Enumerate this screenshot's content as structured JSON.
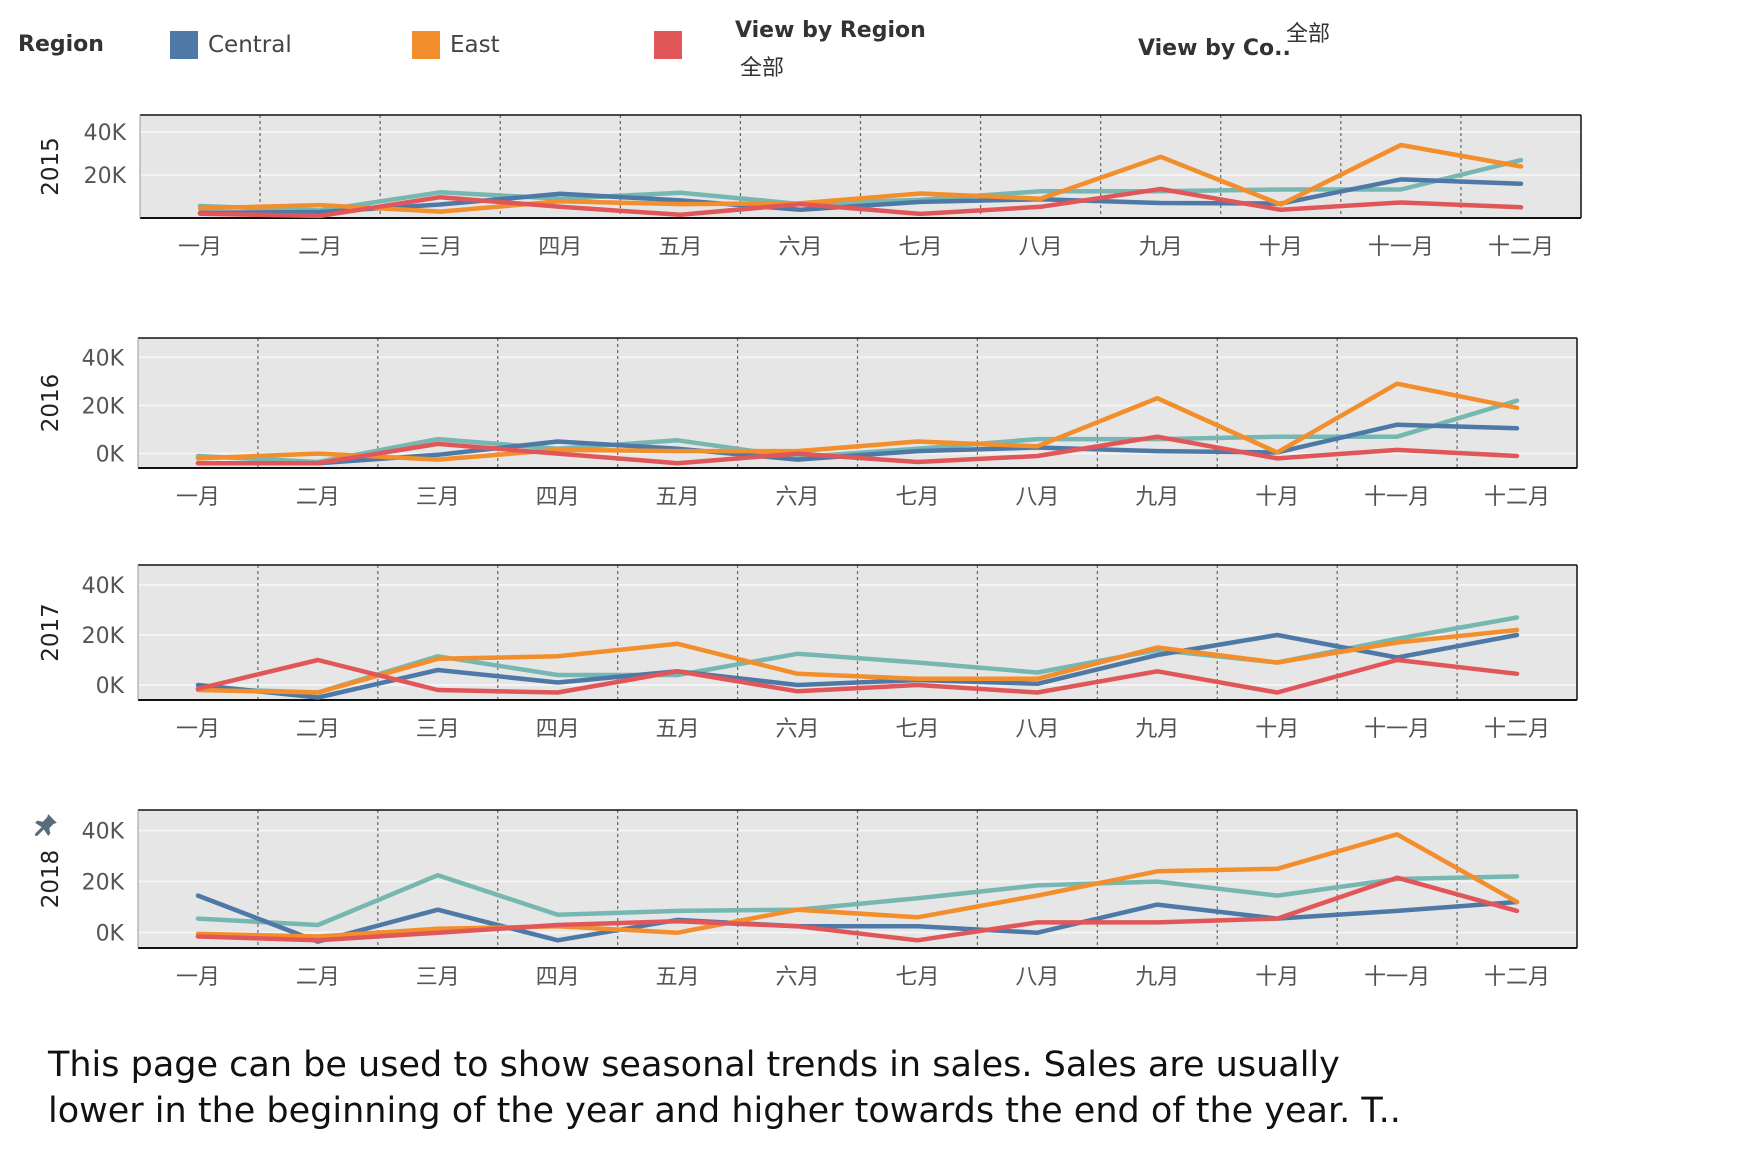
{
  "legend": {
    "title": "Region",
    "items": [
      {
        "label": "Central",
        "color": "#4e79a7"
      },
      {
        "label": "East",
        "color": "#f28e2b"
      },
      {
        "label": "",
        "color": "#e15759"
      }
    ]
  },
  "filters": [
    {
      "label": "View by Region",
      "value": "全部"
    },
    {
      "label": "View by Co..",
      "value": "全部"
    }
  ],
  "chart_data": {
    "type": "line",
    "categories": [
      "一月",
      "二月",
      "三月",
      "四月",
      "五月",
      "六月",
      "七月",
      "八月",
      "九月",
      "十月",
      "十一月",
      "十二月"
    ],
    "colors": {
      "Central": "#4e79a7",
      "East": "#f28e2b",
      "Red": "#e15759",
      "Teal": "#76b7b2"
    },
    "panels": [
      {
        "year": "2015",
        "ylim": [
          0,
          48000
        ],
        "yticks": [
          {
            "value": 20000,
            "label": "20K"
          },
          {
            "value": 40000,
            "label": "40K"
          }
        ],
        "series": [
          {
            "color": "#76b7b2",
            "values": [
              5600,
              3500,
              12000,
              9000,
              11800,
              6500,
              8500,
              12500,
              12500,
              13300,
              13300,
              27000
            ]
          },
          {
            "color": "#4e79a7",
            "values": [
              2400,
              2800,
              6300,
              11300,
              8200,
              3800,
              7500,
              8700,
              7000,
              6700,
              18000,
              16000
            ]
          },
          {
            "color": "#f28e2b",
            "values": [
              4500,
              6000,
              3000,
              7800,
              6500,
              6900,
              11400,
              9000,
              28500,
              6300,
              34000,
              24000
            ]
          },
          {
            "color": "#e15759",
            "values": [
              2000,
              1000,
              9700,
              5200,
              1500,
              6500,
              1900,
              5200,
              13500,
              3800,
              7200,
              5000
            ]
          }
        ]
      },
      {
        "year": "2016",
        "ylim": [
          -6000,
          48000
        ],
        "yticks": [
          {
            "value": 0,
            "label": "0K"
          },
          {
            "value": 20000,
            "label": "20K"
          },
          {
            "value": 40000,
            "label": "40K"
          }
        ],
        "series": [
          {
            "color": "#76b7b2",
            "values": [
              -1000,
              -3500,
              6000,
              2000,
              5500,
              -1500,
              2000,
              6000,
              6000,
              7000,
              7000,
              22000
            ]
          },
          {
            "color": "#4e79a7",
            "values": [
              -4000,
              -4000,
              -500,
              5000,
              2000,
              -2500,
              1000,
              2500,
              1000,
              500,
              12000,
              10500
            ]
          },
          {
            "color": "#f28e2b",
            "values": [
              -2000,
              0,
              -2500,
              1500,
              1000,
              1000,
              5000,
              3000,
              23000,
              500,
              29000,
              19000
            ]
          },
          {
            "color": "#e15759",
            "values": [
              -4000,
              -4000,
              4000,
              0,
              -4000,
              0,
              -3500,
              -1000,
              7000,
              -2000,
              1500,
              -1000
            ]
          }
        ]
      },
      {
        "year": "2017",
        "ylim": [
          -6000,
          48000
        ],
        "yticks": [
          {
            "value": 0,
            "label": "0K"
          },
          {
            "value": 20000,
            "label": "20K"
          },
          {
            "value": 40000,
            "label": "40K"
          }
        ],
        "series": [
          {
            "color": "#76b7b2",
            "values": [
              -1500,
              -3000,
              11500,
              4000,
              4000,
              12500,
              9000,
              5000,
              14000,
              9000,
              18500,
              27000
            ]
          },
          {
            "color": "#4e79a7",
            "values": [
              0,
              -5000,
              6000,
              1000,
              5500,
              0,
              2000,
              500,
              12000,
              20000,
              11000,
              20000
            ]
          },
          {
            "color": "#f28e2b",
            "values": [
              -2000,
              -3000,
              10500,
              11500,
              16500,
              4500,
              2500,
              2500,
              15000,
              9000,
              17000,
              22000
            ]
          },
          {
            "color": "#e15759",
            "values": [
              -1500,
              10000,
              -2000,
              -3000,
              5500,
              -2500,
              0,
              -3000,
              5500,
              -3000,
              10000,
              4500
            ]
          }
        ]
      },
      {
        "year": "2018",
        "ylim": [
          -6000,
          48000
        ],
        "yticks": [
          {
            "value": 0,
            "label": "0K"
          },
          {
            "value": 20000,
            "label": "20K"
          },
          {
            "value": 40000,
            "label": "40K"
          }
        ],
        "series": [
          {
            "color": "#76b7b2",
            "values": [
              5500,
              3000,
              22500,
              7000,
              8500,
              9000,
              13500,
              18500,
              20000,
              14500,
              21000,
              22000
            ]
          },
          {
            "color": "#4e79a7",
            "values": [
              14500,
              -3500,
              9000,
              -3000,
              5000,
              2500,
              2500,
              0,
              11000,
              5500,
              8500,
              12000
            ]
          },
          {
            "color": "#f28e2b",
            "values": [
              -500,
              -1500,
              1500,
              2500,
              0,
              9000,
              6000,
              14500,
              24000,
              25000,
              38500,
              12000
            ]
          },
          {
            "color": "#e15759",
            "values": [
              -1500,
              -3000,
              0,
              3000,
              4500,
              2500,
              -3000,
              4000,
              4000,
              5500,
              21500,
              8500
            ]
          }
        ]
      }
    ]
  },
  "caption": {
    "line1": "This page can be used to show seasonal trends in sales.  Sales are usually",
    "line2": "lower in the beginning of the year and higher towards the end of the year.  T.."
  }
}
